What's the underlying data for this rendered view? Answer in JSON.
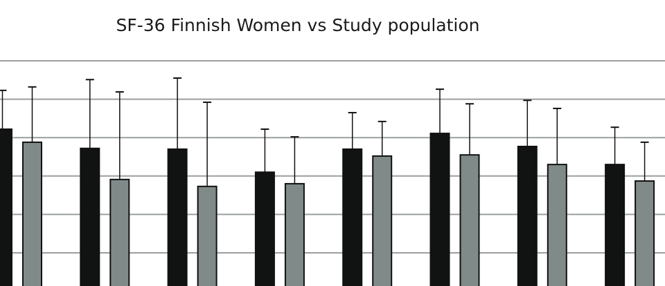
{
  "chart_data": {
    "type": "bar",
    "title": "SF-36 Finnish Women vs Study population",
    "xlabel": "",
    "ylabel": "",
    "grid": true,
    "gridline_step": 10,
    "visible_ylim": [
      41.4,
      115.8
    ],
    "categories": [
      "",
      "",
      "",
      "",
      "",
      "",
      "",
      ""
    ],
    "series": [
      {
        "color": "#111312",
        "values": [
          82.2,
          77.2,
          77.0,
          71.0,
          77.0,
          81.1,
          77.7,
          73.0
        ],
        "error": [
          10.1,
          17.9,
          18.5,
          11.2,
          9.5,
          11.5,
          12.0,
          9.7
        ]
      },
      {
        "color": "#7f8a89",
        "values": [
          78.8,
          69.1,
          67.3,
          68.0,
          75.2,
          75.5,
          73.0,
          68.7
        ],
        "error": [
          14.4,
          22.8,
          21.9,
          12.2,
          9.0,
          13.3,
          14.6,
          10.1
        ]
      }
    ],
    "gridlines": [
      50,
      60,
      70,
      80,
      90,
      100
    ]
  }
}
